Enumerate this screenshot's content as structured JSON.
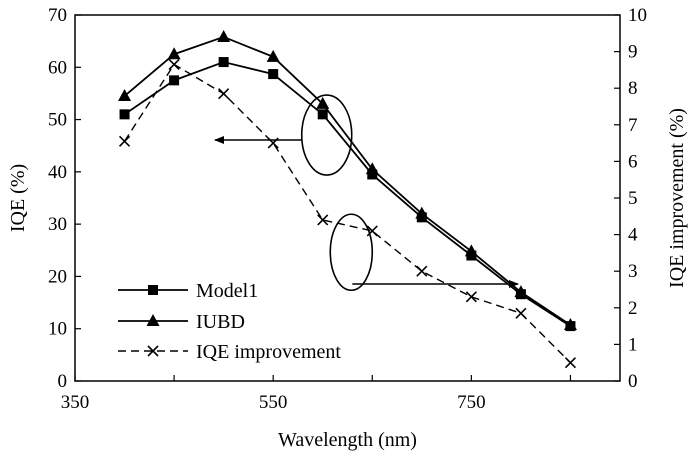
{
  "chart_data": {
    "type": "line",
    "xlabel": "Wavelength (nm)",
    "ylabel_left": "IQE (%)",
    "ylabel_right": "IQE improvement (%)",
    "xlim": [
      350,
      900
    ],
    "ylim_left": [
      0,
      70
    ],
    "ylim_right": [
      0,
      10
    ],
    "x_ticks": [
      350,
      550,
      750
    ],
    "y_left_ticks": [
      0,
      10,
      20,
      30,
      40,
      50,
      60,
      70
    ],
    "y_right_ticks": [
      0,
      1,
      2,
      3,
      4,
      5,
      6,
      7,
      8,
      9,
      10
    ],
    "grid": false,
    "legend_position": "bottom-left",
    "series": [
      {
        "name": "Model1",
        "axis": "left",
        "marker": "square",
        "line": "solid",
        "x": [
          400,
          450,
          500,
          550,
          600,
          650,
          700,
          750,
          800,
          850
        ],
        "y": [
          51,
          57.5,
          61,
          58.7,
          51,
          39.5,
          31.3,
          24,
          16.6,
          10.5
        ]
      },
      {
        "name": "IUBD",
        "axis": "left",
        "marker": "triangle",
        "line": "solid",
        "x": [
          400,
          450,
          500,
          550,
          600,
          650,
          700,
          750,
          800,
          850
        ],
        "y": [
          54.5,
          62.5,
          65.8,
          62,
          53,
          40.5,
          32,
          24.8,
          17,
          10.7
        ]
      },
      {
        "name": "IQE improvement",
        "axis": "right",
        "marker": "x",
        "line": "dashed",
        "x": [
          400,
          450,
          500,
          550,
          600,
          650,
          700,
          750,
          800,
          850
        ],
        "y": [
          6.55,
          8.65,
          7.85,
          6.5,
          4.4,
          4.1,
          3.0,
          2.3,
          1.85,
          0.5
        ]
      }
    ],
    "annotations": [
      {
        "type": "ellipse-arrow",
        "encircles": [
          "Model1",
          "IUBD"
        ],
        "x": 600,
        "y": 48,
        "arrow_to": "left-axis"
      },
      {
        "type": "ellipse-arrow",
        "encircles": [
          "IQE improvement"
        ],
        "x": 650,
        "y": 3.6,
        "arrow_to": "right-axis"
      }
    ]
  }
}
